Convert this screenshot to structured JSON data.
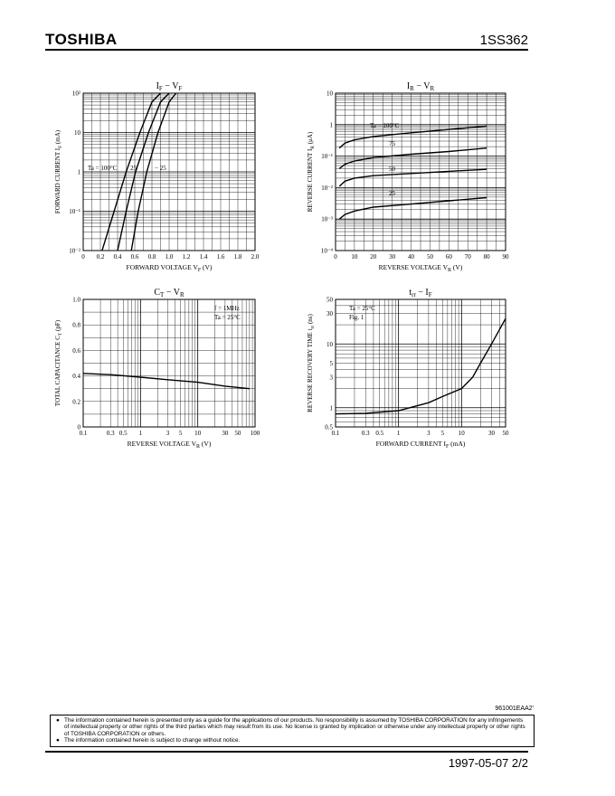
{
  "header": {
    "brand": "TOSHIBA",
    "part_number": "1SS362"
  },
  "charts": [
    {
      "title_main": "I",
      "title_sub1": "F",
      "title_sep": " − V",
      "title_sub2": "F",
      "ylabel": "FORWARD CURRENT  I",
      "ylabel_sub": "F",
      "ylabel_unit": "(mA)",
      "xlabel": "FORWARD VOLTAGE  V",
      "xlabel_sub": "F",
      "xlabel_unit": "(V)",
      "xticks": [
        "0",
        "0.2",
        "0.4",
        "0.6",
        "0.8",
        "1.0",
        "1.2",
        "1.4",
        "1.6",
        "1.8",
        "2.0"
      ],
      "yticks": [
        "10⁻²",
        "10⁻¹",
        "1",
        "10",
        "10²"
      ],
      "annotations": [
        "Ta = 100°C",
        "25",
        "− 25"
      ]
    },
    {
      "title_main": "I",
      "title_sub1": "R",
      "title_sep": " − V",
      "title_sub2": "R",
      "ylabel": "REVERSE CURRENT  I",
      "ylabel_sub": "R",
      "ylabel_unit": "(μA)",
      "xlabel": "REVERSE VOLTAGE  V",
      "xlabel_sub": "R",
      "xlabel_unit": "(V)",
      "xticks": [
        "0",
        "10",
        "20",
        "30",
        "40",
        "50",
        "60",
        "70",
        "80",
        "90"
      ],
      "yticks": [
        "10⁻⁴",
        "10⁻³",
        "10⁻²",
        "10⁻¹",
        "1",
        "10"
      ],
      "annotations": [
        "Ta = 100°C",
        "75",
        "50",
        "25"
      ]
    },
    {
      "title_main": "C",
      "title_sub1": "T",
      "title_sep": " − V",
      "title_sub2": "R",
      "ylabel": "TOTAL CAPACITANCE  C",
      "ylabel_sub": "T",
      "ylabel_unit": "(pF)",
      "xlabel": "REVERSE VOLTAGE  V",
      "xlabel_sub": "R",
      "xlabel_unit": "(V)",
      "xticks": [
        "0.1",
        "0.3",
        "0.5",
        "1",
        "3",
        "5",
        "10",
        "30",
        "50",
        "100"
      ],
      "yticks": [
        "0",
        "0.2",
        "0.4",
        "0.6",
        "0.8",
        "1.0"
      ],
      "annotations": [
        "f = 1MHz",
        "Ta = 25°C"
      ]
    },
    {
      "title_main": "t",
      "title_sub1": "rr",
      "title_sep": " − I",
      "title_sub2": "F",
      "ylabel": "REVERSE RECOVERY  TIME  t",
      "ylabel_sub": "rr",
      "ylabel_unit": "(ns)",
      "xlabel": "FORWARD CURRENT  I",
      "xlabel_sub": "F",
      "xlabel_unit": "(mA)",
      "xticks": [
        "0.1",
        "0.3",
        "0.5",
        "1",
        "3",
        "5",
        "10",
        "30",
        "50"
      ],
      "yticks": [
        "0.5",
        "1",
        "3",
        "5",
        "10",
        "30",
        "50"
      ],
      "annotations": [
        "Ta = 25°C",
        "Fig. 1"
      ]
    }
  ],
  "chart_data": [
    {
      "type": "line",
      "title": "IF − VF",
      "xlabel": "FORWARD VOLTAGE VF (V)",
      "ylabel": "FORWARD CURRENT IF (mA)",
      "xlim": [
        0,
        2.0
      ],
      "ylim": [
        0.01,
        100
      ],
      "yscale": "log",
      "grid": true,
      "series": [
        {
          "name": "Ta = 100°C",
          "x": [
            0.22,
            0.36,
            0.5,
            0.66,
            0.8,
            0.9
          ],
          "y": [
            0.01,
            0.1,
            1,
            10,
            60,
            100
          ]
        },
        {
          "name": "25",
          "x": [
            0.4,
            0.5,
            0.61,
            0.76,
            0.9,
            1.0
          ],
          "y": [
            0.01,
            0.1,
            1,
            10,
            60,
            100
          ]
        },
        {
          "name": "− 25",
          "x": [
            0.56,
            0.64,
            0.74,
            0.87,
            1.0,
            1.08
          ],
          "y": [
            0.01,
            0.1,
            1,
            10,
            60,
            100
          ]
        }
      ]
    },
    {
      "type": "line",
      "title": "IR − VR",
      "xlabel": "REVERSE VOLTAGE VR (V)",
      "ylabel": "REVERSE CURRENT IR (μA)",
      "xlim": [
        0,
        90
      ],
      "ylim": [
        0.0001,
        10
      ],
      "yscale": "log",
      "grid": true,
      "series": [
        {
          "name": "Ta = 100°C",
          "x": [
            2,
            5,
            10,
            20,
            40,
            60,
            80
          ],
          "y": [
            0.18,
            0.26,
            0.33,
            0.42,
            0.55,
            0.7,
            0.9
          ]
        },
        {
          "name": "75",
          "x": [
            2,
            5,
            10,
            20,
            40,
            60,
            80
          ],
          "y": [
            0.04,
            0.055,
            0.07,
            0.09,
            0.115,
            0.14,
            0.18
          ]
        },
        {
          "name": "50",
          "x": [
            2,
            5,
            10,
            20,
            40,
            60,
            80
          ],
          "y": [
            0.011,
            0.016,
            0.02,
            0.024,
            0.028,
            0.033,
            0.038
          ]
        },
        {
          "name": "25",
          "x": [
            2,
            5,
            10,
            20,
            40,
            60,
            80
          ],
          "y": [
            0.001,
            0.0014,
            0.0018,
            0.0024,
            0.003,
            0.0038,
            0.0048
          ]
        }
      ]
    },
    {
      "type": "line",
      "title": "CT − VR",
      "xlabel": "REVERSE VOLTAGE VR (V)",
      "ylabel": "TOTAL CAPACITANCE CT (pF)",
      "xlim": [
        0.1,
        100
      ],
      "ylim": [
        0,
        1.0
      ],
      "xscale": "log",
      "grid": true,
      "series": [
        {
          "name": "",
          "x": [
            0.1,
            0.3,
            1,
            3,
            10,
            30,
            80
          ],
          "y": [
            0.42,
            0.41,
            0.39,
            0.37,
            0.35,
            0.32,
            0.3
          ]
        }
      ]
    },
    {
      "type": "line",
      "title": "trr − IF",
      "xlabel": "FORWARD CURRENT IF (mA)",
      "ylabel": "REVERSE RECOVERY TIME trr (ns)",
      "xlim": [
        0.1,
        50
      ],
      "ylim": [
        0.5,
        50
      ],
      "xscale": "log",
      "yscale": "log",
      "grid": true,
      "series": [
        {
          "name": "",
          "x": [
            0.1,
            0.3,
            1,
            3,
            5,
            10,
            15,
            20,
            30,
            50
          ],
          "y": [
            0.8,
            0.82,
            0.9,
            1.2,
            1.5,
            2.0,
            3.0,
            5.0,
            10,
            25
          ]
        }
      ]
    }
  ],
  "footer": {
    "doc_code": "961001EAA2'",
    "bullet": "●",
    "disclaimer_1": "The information contained herein is presented only as a guide for the applications of our products. No responsibility is assumed by TOSHIBA CORPORATION for any infringements of intellectual property or other rights of the third parties which may result from its use. No license is granted by implication or otherwise under any intellectual property or other rights of TOSHIBA CORPORATION or others.",
    "disclaimer_2": "The information contained herein is subject to change without notice.",
    "date_page": "1997-05-07   2/2"
  }
}
